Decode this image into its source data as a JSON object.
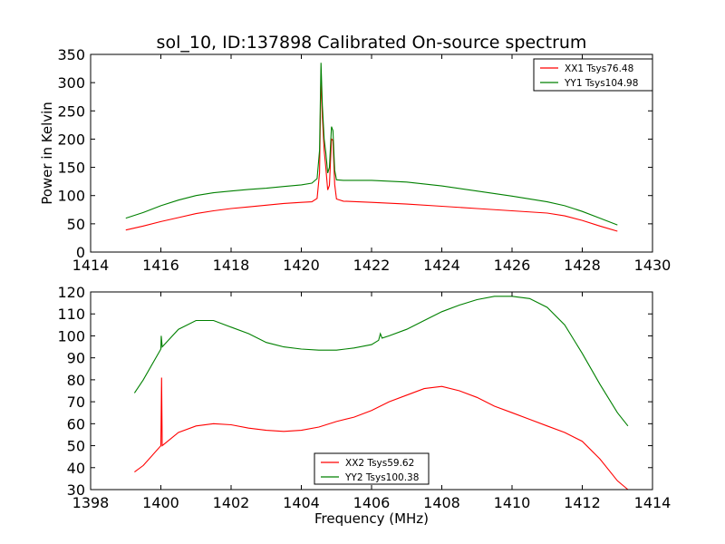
{
  "chart_data": [
    {
      "type": "line",
      "title": "sol_10, ID:137898 Calibrated On-source spectrum",
      "xlabel": "",
      "ylabel": "Power in Kelvin",
      "xlim": [
        1414,
        1430
      ],
      "ylim": [
        0,
        350
      ],
      "xticks": [
        "1414",
        "1416",
        "1418",
        "1420",
        "1422",
        "1424",
        "1426",
        "1428",
        "1430"
      ],
      "yticks": [
        "0",
        "50",
        "100",
        "150",
        "200",
        "250",
        "300",
        "350"
      ],
      "legend_position": "top-right",
      "series": [
        {
          "name": "XX1 Tsys76.48",
          "color": "#ff0000",
          "points": [
            [
              1415.0,
              39
            ],
            [
              1415.5,
              46
            ],
            [
              1416.0,
              54
            ],
            [
              1416.5,
              61
            ],
            [
              1417.0,
              68
            ],
            [
              1417.5,
              73
            ],
            [
              1418.0,
              77
            ],
            [
              1418.5,
              80
            ],
            [
              1419.0,
              83
            ],
            [
              1419.5,
              86
            ],
            [
              1420.0,
              88
            ],
            [
              1420.3,
              89
            ],
            [
              1420.45,
              95
            ],
            [
              1420.52,
              140
            ],
            [
              1420.56,
              318
            ],
            [
              1420.6,
              240
            ],
            [
              1420.65,
              180
            ],
            [
              1420.7,
              148
            ],
            [
              1420.75,
              110
            ],
            [
              1420.8,
              118
            ],
            [
              1420.86,
              200
            ],
            [
              1420.9,
              198
            ],
            [
              1420.95,
              120
            ],
            [
              1421.0,
              94
            ],
            [
              1421.2,
              90
            ],
            [
              1422.0,
              88
            ],
            [
              1423.0,
              85
            ],
            [
              1424.0,
              81
            ],
            [
              1425.0,
              77
            ],
            [
              1426.0,
              73
            ],
            [
              1427.0,
              69
            ],
            [
              1427.5,
              64
            ],
            [
              1428.0,
              56
            ],
            [
              1428.5,
              46
            ],
            [
              1429.0,
              37
            ]
          ]
        },
        {
          "name": "YY1 Tsys104.98",
          "color": "#008000",
          "points": [
            [
              1415.0,
              60
            ],
            [
              1415.5,
              70
            ],
            [
              1416.0,
              82
            ],
            [
              1416.5,
              92
            ],
            [
              1417.0,
              100
            ],
            [
              1417.5,
              105
            ],
            [
              1418.0,
              108
            ],
            [
              1418.5,
              111
            ],
            [
              1419.0,
              113
            ],
            [
              1419.5,
              116
            ],
            [
              1420.0,
              119
            ],
            [
              1420.3,
              122
            ],
            [
              1420.45,
              130
            ],
            [
              1420.52,
              180
            ],
            [
              1420.56,
              335
            ],
            [
              1420.6,
              260
            ],
            [
              1420.65,
              200
            ],
            [
              1420.7,
              175
            ],
            [
              1420.75,
              140
            ],
            [
              1420.8,
              150
            ],
            [
              1420.86,
              222
            ],
            [
              1420.9,
              215
            ],
            [
              1420.95,
              145
            ],
            [
              1421.0,
              128
            ],
            [
              1421.2,
              127
            ],
            [
              1422.0,
              127
            ],
            [
              1423.0,
              124
            ],
            [
              1424.0,
              117
            ],
            [
              1425.0,
              108
            ],
            [
              1426.0,
              99
            ],
            [
              1427.0,
              89
            ],
            [
              1427.5,
              82
            ],
            [
              1428.0,
              72
            ],
            [
              1428.5,
              60
            ],
            [
              1429.0,
              48
            ]
          ]
        }
      ]
    },
    {
      "type": "line",
      "title": "",
      "xlabel": "Frequency (MHz)",
      "ylabel": "",
      "xlim": [
        1398,
        1414
      ],
      "ylim": [
        30,
        120
      ],
      "xticks": [
        "1398",
        "1400",
        "1402",
        "1404",
        "1406",
        "1408",
        "1410",
        "1412",
        "1414"
      ],
      "yticks": [
        "30",
        "40",
        "50",
        "60",
        "70",
        "80",
        "90",
        "100",
        "110",
        "120"
      ],
      "legend_position": "bottom-center",
      "series": [
        {
          "name": "XX2 Tsys59.62",
          "color": "#ff0000",
          "points": [
            [
              1399.25,
              38
            ],
            [
              1399.5,
              41
            ],
            [
              1400.0,
              50
            ],
            [
              1400.02,
              81
            ],
            [
              1400.04,
              50
            ],
            [
              1400.5,
              56
            ],
            [
              1401.0,
              59
            ],
            [
              1401.5,
              60
            ],
            [
              1402.0,
              59.5
            ],
            [
              1402.5,
              58
            ],
            [
              1403.0,
              57
            ],
            [
              1403.5,
              56.5
            ],
            [
              1404.0,
              57
            ],
            [
              1404.5,
              58.5
            ],
            [
              1405.0,
              61
            ],
            [
              1405.5,
              63
            ],
            [
              1406.0,
              66
            ],
            [
              1406.5,
              70
            ],
            [
              1407.0,
              73
            ],
            [
              1407.5,
              76
            ],
            [
              1408.0,
              77
            ],
            [
              1408.5,
              75
            ],
            [
              1409.0,
              72
            ],
            [
              1409.5,
              68
            ],
            [
              1410.0,
              65
            ],
            [
              1410.5,
              62
            ],
            [
              1411.0,
              59
            ],
            [
              1411.5,
              56
            ],
            [
              1412.0,
              52
            ],
            [
              1412.5,
              44
            ],
            [
              1413.0,
              34
            ],
            [
              1413.3,
              30
            ]
          ]
        },
        {
          "name": "YY2 Tsys100.38",
          "color": "#008000",
          "points": [
            [
              1399.25,
              74
            ],
            [
              1399.5,
              80
            ],
            [
              1400.0,
              94
            ],
            [
              1400.01,
              100
            ],
            [
              1400.04,
              95
            ],
            [
              1400.5,
              103
            ],
            [
              1401.0,
              107
            ],
            [
              1401.5,
              107
            ],
            [
              1402.0,
              104
            ],
            [
              1402.5,
              101
            ],
            [
              1403.0,
              97
            ],
            [
              1403.5,
              95
            ],
            [
              1404.0,
              94
            ],
            [
              1404.5,
              93.5
            ],
            [
              1405.0,
              93.5
            ],
            [
              1405.5,
              94.5
            ],
            [
              1406.0,
              96
            ],
            [
              1406.2,
              98
            ],
            [
              1406.25,
              101
            ],
            [
              1406.3,
              99
            ],
            [
              1406.5,
              100
            ],
            [
              1407.0,
              103
            ],
            [
              1407.5,
              107
            ],
            [
              1408.0,
              111
            ],
            [
              1408.5,
              114
            ],
            [
              1409.0,
              116.5
            ],
            [
              1409.5,
              118
            ],
            [
              1410.0,
              118
            ],
            [
              1410.5,
              117
            ],
            [
              1411.0,
              113
            ],
            [
              1411.5,
              105
            ],
            [
              1412.0,
              92
            ],
            [
              1412.5,
              78
            ],
            [
              1413.0,
              65
            ],
            [
              1413.3,
              59
            ]
          ]
        }
      ]
    }
  ]
}
